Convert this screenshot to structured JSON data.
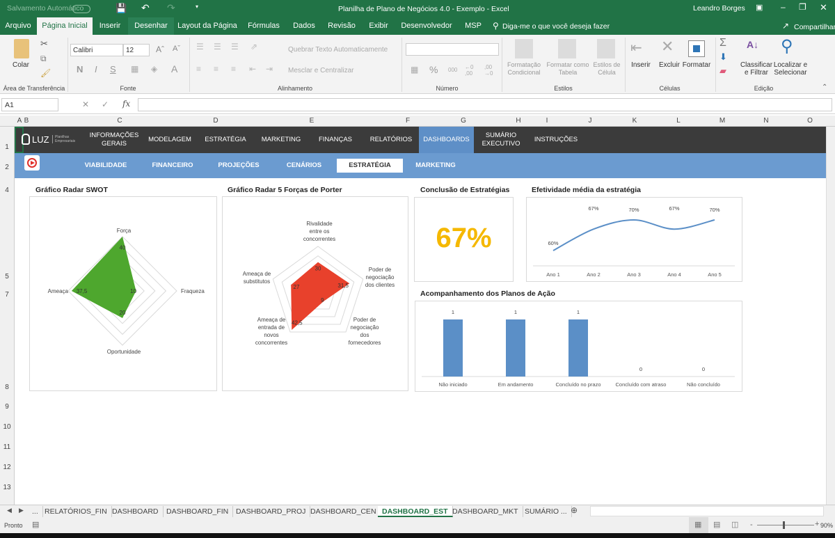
{
  "titlebar": {
    "autosave": "Salvamento Automático",
    "title": "Planilha de Plano de Negócios 4.0 - Exemplo  -  Excel",
    "user": "Leandro Borges"
  },
  "ribbon_tabs": [
    "Arquivo",
    "Página Inicial",
    "Inserir",
    "Desenhar",
    "Layout da Página",
    "Fórmulas",
    "Dados",
    "Revisão",
    "Exibir",
    "Desenvolvedor",
    "MSP"
  ],
  "tell_me": "Diga-me o que você deseja fazer",
  "share": "Compartilhar",
  "ribbon": {
    "paste": "Colar",
    "clipboard": "Área de Transferência",
    "font_name": "Calibri",
    "font_size": "12",
    "bold": "N",
    "italic": "I",
    "underline": "S",
    "font_group": "Fonte",
    "wrap": "Quebrar Texto Automaticamente",
    "merge": "Mesclar e Centralizar",
    "alignment_group": "Alinhamento",
    "number_format": "",
    "number_group": "Número",
    "cond_format": "Formatação Condicional",
    "format_table": "Formatar como Tabela",
    "cell_styles": "Estilos de Célula",
    "styles_group": "Estilos",
    "insert": "Inserir",
    "delete": "Excluir",
    "format": "Formatar",
    "cells_group": "Células",
    "sort": "Classificar e Filtrar",
    "find": "Localizar e Selecionar",
    "editing_group": "Edição"
  },
  "formula_bar": {
    "name_box": "A1",
    "fx": "fx",
    "value": ""
  },
  "columns": [
    "A",
    "B",
    "C",
    "D",
    "E",
    "F",
    "G",
    "H",
    "I",
    "J",
    "K",
    "L",
    "M",
    "N",
    "O"
  ],
  "rows": [
    "1",
    "2",
    "4",
    "5",
    "7",
    "8",
    "9",
    "10",
    "11",
    "12",
    "13"
  ],
  "nav_main": [
    "INFORMAÇÕES GERAIS",
    "MODELAGEM",
    "ESTRATÉGIA",
    "MARKETING",
    "FINANÇAS",
    "RELATÓRIOS",
    "DASHBOARDS",
    "SUMÁRIO EXECUTIVO",
    "INSTRUÇÕES"
  ],
  "nav_main_active": "DASHBOARDS",
  "nav_sub": [
    "VIABILIDADE",
    "FINANCEIRO",
    "PROJEÇÕES",
    "CENÁRIOS",
    "ESTRATÉGIA",
    "MARKETING"
  ],
  "nav_sub_active": "ESTRATÉGIA",
  "logo": {
    "text": "LUZ",
    "sub": "Planilhas Empresariais"
  },
  "colors": {
    "excel_green": "#217346",
    "nav_dark": "#3b3b3b",
    "nav_blue": "#6b9bd0",
    "swot_fill": "#4ea72e",
    "porter_fill": "#e8412c",
    "kpi_yellow": "#f5b800",
    "series_blue": "#5b8fc7"
  },
  "chart_data": [
    {
      "type": "radar",
      "title": "Gráfico Radar SWOT",
      "categories": [
        "Força",
        "Fraqueza",
        "Oportunidade",
        "Ameaça"
      ],
      "values": [
        40,
        10,
        20,
        37.5
      ],
      "labels": [
        "40",
        "10",
        "20",
        "37,5"
      ]
    },
    {
      "type": "radar",
      "title": "Gráfico Radar 5 Forças de Porter",
      "categories": [
        "Rivalidade entre os concorrentes",
        "Poder de negociação dos clientes",
        "Poder de negociação dos fornecedores",
        "Ameaça de entrada de novos concorrentes",
        "Ameaça de substitutos"
      ],
      "values": [
        30,
        31.5,
        9,
        42.5,
        27
      ],
      "labels": [
        "30",
        "31,5",
        "9",
        "42,5",
        "27"
      ]
    },
    {
      "type": "kpi",
      "title": "Conclusão de Estratégias",
      "value": "67%"
    },
    {
      "type": "line",
      "title": "Efetividade média da estratégia",
      "categories": [
        "Ano 1",
        "Ano 2",
        "Ano 3",
        "Ano 4",
        "Ano 5"
      ],
      "values": [
        60,
        67,
        70,
        67,
        70
      ],
      "labels": [
        "60%",
        "67%",
        "70%",
        "67%",
        "70%"
      ]
    },
    {
      "type": "bar",
      "title": "Acompanhamento dos Planos de Ação",
      "categories": [
        "Não iniciado",
        "Em andamento",
        "Concluído no prazo",
        "Concluído com atraso",
        "Não concluído"
      ],
      "values": [
        1,
        1,
        1,
        0,
        0
      ]
    }
  ],
  "sheet_tabs": [
    "...",
    "RELATÓRIOS_FIN",
    "DASHBOARD",
    "DASHBOARD_FIN",
    "DASHBOARD_PROJ",
    "DASHBOARD_CEN",
    "DASHBOARD_EST",
    "DASHBOARD_MKT",
    "SUMÁRIO ..."
  ],
  "active_sheet": "DASHBOARD_EST",
  "status": {
    "ready": "Pronto",
    "zoom": "90%",
    "zoom_level": 90
  }
}
